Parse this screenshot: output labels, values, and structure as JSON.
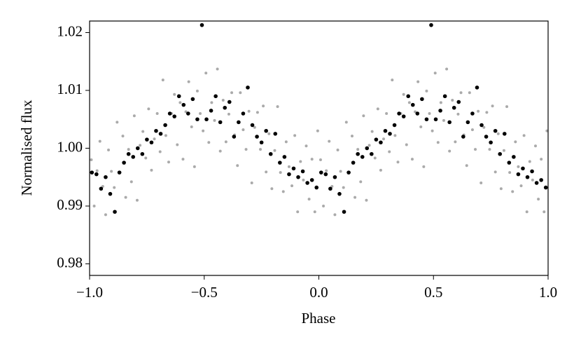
{
  "chart_data": {
    "type": "scatter",
    "xlabel": "Phase",
    "ylabel": "Normalised flux",
    "xlim": [
      -1,
      1
    ],
    "ylim": [
      0.978,
      1.022
    ],
    "xticks": [
      {
        "value": -1,
        "label": "−1.0"
      },
      {
        "value": -0.5,
        "label": "−0.5"
      },
      {
        "value": 0,
        "label": "0.0"
      },
      {
        "value": 0.5,
        "label": "0.5"
      },
      {
        "value": 1,
        "label": "1.0"
      }
    ],
    "yticks": [
      0.98,
      0.99,
      {
        "value": 1,
        "label": "1.00"
      },
      1.01,
      1.02
    ],
    "series": [
      {
        "color": "#aaaaaa",
        "size": 2,
        "x": [
          -0.9925,
          -0.98,
          -0.9675,
          -0.955,
          -0.9425,
          -0.93,
          -0.9175,
          -0.905,
          -0.8925,
          -0.88,
          -0.8675,
          -0.855,
          -0.8425,
          -0.83,
          -0.8175,
          -0.805,
          -0.7925,
          -0.78,
          -0.7675,
          -0.755,
          -0.7425,
          -0.73,
          -0.7175,
          -0.705,
          -0.6925,
          -0.68,
          -0.6675,
          -0.655,
          -0.6425,
          -0.63,
          -0.6175,
          -0.605,
          -0.5925,
          -0.58,
          -0.5675,
          -0.555,
          -0.5425,
          -0.53,
          -0.5175,
          -0.505,
          -0.4925,
          -0.48,
          -0.4675,
          -0.455,
          -0.4425,
          -0.43,
          -0.4175,
          -0.405,
          -0.3925,
          -0.38,
          -0.3675,
          -0.355,
          -0.3425,
          -0.33,
          -0.3175,
          -0.305,
          -0.2925,
          -0.28,
          -0.2675,
          -0.255,
          -0.2425,
          -0.23,
          -0.2175,
          -0.205,
          -0.1925,
          -0.18,
          -0.1675,
          -0.155,
          -0.1425,
          -0.13,
          -0.1175,
          -0.105,
          -0.0925,
          -0.08,
          -0.0675,
          -0.055,
          -0.0425,
          -0.03,
          -0.0175,
          -0.005,
          0.0075,
          0.02,
          0.0325,
          0.045,
          0.0575,
          0.07,
          0.0825,
          0.095,
          0.1075,
          0.12,
          0.1325,
          0.145,
          0.1575,
          0.17,
          0.1825,
          0.195,
          0.2075,
          0.22,
          0.2325,
          0.245,
          0.2575,
          0.27,
          0.2825,
          0.295,
          0.3075,
          0.32,
          0.3325,
          0.345,
          0.3575,
          0.37,
          0.3825,
          0.395,
          0.4075,
          0.42,
          0.4325,
          0.445,
          0.4575,
          0.47,
          0.4825,
          0.495,
          0.5075,
          0.52,
          0.5325,
          0.545,
          0.5575,
          0.57,
          0.5825,
          0.595,
          0.6075,
          0.62,
          0.6325,
          0.645,
          0.6575,
          0.67,
          0.6825,
          0.695,
          0.7075,
          0.72,
          0.7325,
          0.745,
          0.7575,
          0.77,
          0.7825,
          0.795,
          0.8075,
          0.82,
          0.8325,
          0.845,
          0.8575,
          0.87,
          0.8825,
          0.895,
          0.9075,
          0.92,
          0.9325,
          0.945,
          0.9575,
          0.97,
          0.9825,
          0.995
        ],
        "values": [
          0.998,
          0.99,
          0.9961,
          1.0012,
          0.9934,
          0.9885,
          0.9997,
          0.996,
          0.9932,
          1.0045,
          0.9958,
          1.0021,
          0.9915,
          0.9998,
          0.9942,
          1.0056,
          0.991,
          1.0005,
          1.0029,
          0.9983,
          1.0068,
          0.9962,
          1.0016,
          1.006,
          0.9994,
          1.0118,
          1.0022,
          0.9976,
          1.006,
          1.0093,
          1.0006,
          1.0079,
          0.9981,
          1.0063,
          1.0115,
          1.0037,
          0.9968,
          1.0099,
          1.006,
          1.003,
          1.013,
          1.001,
          1.0079,
          1.0048,
          1.0137,
          0.9995,
          1.0083,
          1.0011,
          1.0059,
          1.0096,
          1.0023,
          0.997,
          1.0096,
          1.0032,
          0.9998,
          1.0064,
          0.994,
          1.0036,
          1.0062,
          0.9998,
          1.0073,
          0.9959,
          1.0025,
          0.993,
          0.9996,
          1.0072,
          0.9958,
          0.9925,
          1.0011,
          0.9968,
          0.9935,
          1.0022,
          0.989,
          0.9977,
          0.9945,
          1.0004,
          0.9912,
          0.9981,
          0.989,
          1.003,
          0.998,
          0.99,
          0.9961,
          1.0012,
          0.9934,
          0.9885,
          0.9997,
          0.996,
          0.9932,
          1.0045,
          0.9958,
          1.0021,
          0.9915,
          0.9998,
          0.9942,
          1.0056,
          0.991,
          1.0005,
          1.0029,
          0.9983,
          1.0068,
          0.9962,
          1.0016,
          1.006,
          0.9994,
          1.0118,
          1.0022,
          0.9976,
          1.006,
          1.0093,
          1.0006,
          1.0079,
          0.9981,
          1.0063,
          1.0115,
          1.0037,
          0.9968,
          1.0099,
          1.006,
          1.003,
          1.013,
          1.001,
          1.0079,
          1.0048,
          1.0137,
          0.9995,
          1.0083,
          1.0011,
          1.0059,
          1.0096,
          1.0023,
          0.997,
          1.0096,
          1.0032,
          0.9998,
          1.0064,
          0.994,
          1.0036,
          1.0062,
          0.9998,
          1.0073,
          0.9959,
          1.0025,
          0.993,
          0.9996,
          1.0072,
          0.9958,
          0.9925,
          1.0011,
          0.9968,
          0.9935,
          1.0022,
          0.989,
          0.9977,
          0.9945,
          1.0004,
          0.9912,
          0.9981,
          0.989,
          1.003
        ]
      },
      {
        "color": "#000000",
        "size": 2.8,
        "x": [
          -0.99,
          -0.97,
          -0.95,
          -0.93,
          -0.91,
          -0.89,
          -0.87,
          -0.85,
          -0.83,
          -0.81,
          -0.79,
          -0.77,
          -0.75,
          -0.73,
          -0.71,
          -0.69,
          -0.67,
          -0.65,
          -0.63,
          -0.61,
          -0.59,
          -0.57,
          -0.55,
          -0.53,
          -0.51,
          -0.49,
          -0.47,
          -0.45,
          -0.43,
          -0.41,
          -0.39,
          -0.37,
          -0.35,
          -0.33,
          -0.31,
          -0.29,
          -0.27,
          -0.25,
          -0.23,
          -0.21,
          -0.19,
          -0.17,
          -0.15,
          -0.13,
          -0.11,
          -0.09,
          -0.07,
          -0.05,
          -0.03,
          -0.01,
          0.01,
          0.03,
          0.05,
          0.07,
          0.09,
          0.11,
          0.13,
          0.15,
          0.17,
          0.19,
          0.21,
          0.23,
          0.25,
          0.27,
          0.29,
          0.31,
          0.33,
          0.35,
          0.37,
          0.39,
          0.41,
          0.43,
          0.45,
          0.47,
          0.49,
          0.51,
          0.53,
          0.55,
          0.57,
          0.59,
          0.61,
          0.63,
          0.65,
          0.67,
          0.69,
          0.71,
          0.73,
          0.75,
          0.77,
          0.79,
          0.81,
          0.83,
          0.85,
          0.87,
          0.89,
          0.91,
          0.93,
          0.95,
          0.97,
          0.99
        ],
        "values": [
          0.9958,
          0.9955,
          0.993,
          0.995,
          0.9921,
          0.989,
          0.9958,
          0.9975,
          0.999,
          0.9985,
          1.0,
          0.999,
          1.0015,
          1.001,
          1.003,
          1.0025,
          1.004,
          1.006,
          1.0055,
          1.009,
          1.0075,
          1.006,
          1.0085,
          1.005,
          1.0213,
          1.005,
          1.0065,
          1.009,
          1.0045,
          1.007,
          1.008,
          1.002,
          1.0045,
          1.006,
          1.0105,
          1.004,
          1.002,
          1.001,
          1.003,
          0.999,
          1.0025,
          0.9975,
          0.9985,
          0.9955,
          0.9965,
          0.995,
          0.996,
          0.994,
          0.9945,
          0.9932,
          0.9958,
          0.9955,
          0.993,
          0.995,
          0.9921,
          0.989,
          0.9958,
          0.9975,
          0.999,
          0.9985,
          1.0,
          0.999,
          1.0015,
          1.001,
          1.003,
          1.0025,
          1.004,
          1.006,
          1.0055,
          1.009,
          1.0075,
          1.006,
          1.0085,
          1.005,
          1.0213,
          1.005,
          1.0065,
          1.009,
          1.0045,
          1.007,
          1.008,
          1.002,
          1.0045,
          1.006,
          1.0105,
          1.004,
          1.002,
          1.001,
          1.003,
          0.999,
          1.0025,
          0.9975,
          0.9985,
          0.9955,
          0.9965,
          0.995,
          0.996,
          0.994,
          0.9945,
          0.9932
        ]
      }
    ]
  }
}
